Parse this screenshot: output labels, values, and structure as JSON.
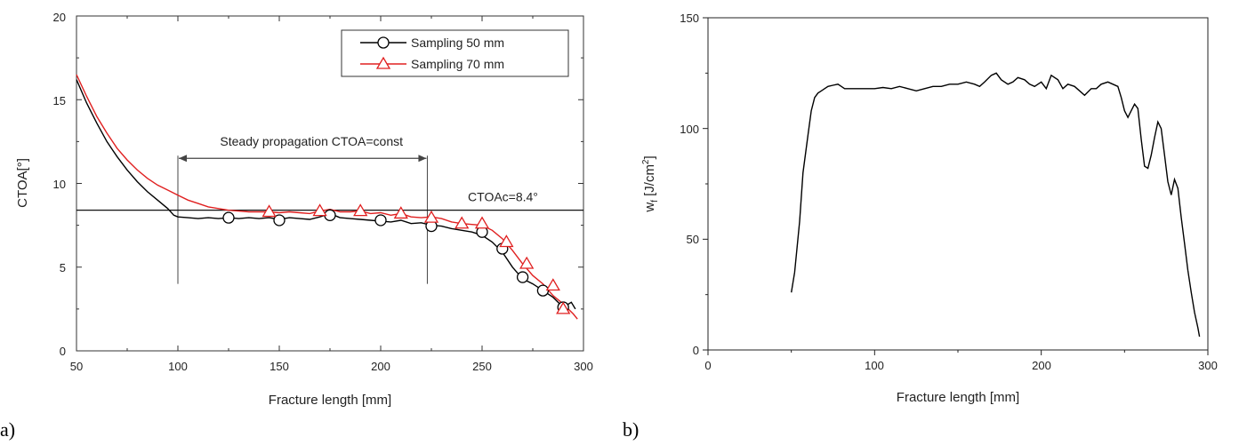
{
  "chart_data": [
    {
      "panel_label": "a)",
      "type": "line",
      "xlabel": "Fracture length [mm]",
      "ylabel": "CTOA[°]",
      "xlim": [
        50,
        300
      ],
      "ylim": [
        0,
        20
      ],
      "xticks": [
        "50",
        "100",
        "150",
        "200",
        "250",
        "300"
      ],
      "yticks": [
        "0",
        "5",
        "10",
        "15",
        "20"
      ],
      "grid": false,
      "legend_position": "top-right",
      "series": [
        {
          "name": "Sampling 50 mm",
          "color": "#000000",
          "marker": "circle",
          "x": [
            50,
            55,
            60,
            65,
            70,
            75,
            80,
            85,
            90,
            95,
            98,
            100,
            105,
            110,
            115,
            120,
            125,
            130,
            135,
            140,
            145,
            150,
            155,
            160,
            165,
            170,
            175,
            180,
            185,
            190,
            195,
            200,
            205,
            210,
            215,
            220,
            225,
            230,
            235,
            240,
            245,
            250,
            255,
            260,
            265,
            270,
            275,
            280,
            285,
            290,
            294,
            296
          ],
          "y": [
            16.2,
            14.8,
            13.6,
            12.5,
            11.6,
            10.8,
            10.1,
            9.5,
            9.0,
            8.5,
            8.1,
            8.0,
            7.95,
            7.9,
            7.95,
            7.9,
            7.95,
            7.9,
            7.95,
            7.9,
            7.95,
            7.85,
            7.95,
            7.9,
            7.85,
            8.0,
            8.2,
            7.95,
            7.9,
            7.85,
            7.8,
            7.75,
            7.7,
            7.8,
            7.6,
            7.65,
            7.5,
            7.45,
            7.3,
            7.2,
            7.1,
            6.9,
            6.5,
            5.9,
            5.0,
            4.3,
            4.0,
            3.6,
            3.2,
            2.6,
            2.9,
            2.5
          ],
          "marker_x": [
            125,
            150,
            175,
            200,
            225,
            250,
            260,
            270,
            280,
            290
          ],
          "marker_y": [
            7.95,
            7.8,
            8.1,
            7.8,
            7.45,
            7.1,
            6.1,
            4.4,
            3.6,
            2.6
          ]
        },
        {
          "name": "Sampling 70 mm",
          "color": "#e02020",
          "marker": "triangle",
          "x": [
            50,
            55,
            60,
            65,
            70,
            75,
            80,
            85,
            90,
            95,
            100,
            105,
            110,
            115,
            120,
            125,
            130,
            135,
            140,
            145,
            150,
            155,
            160,
            165,
            170,
            175,
            180,
            185,
            190,
            195,
            200,
            205,
            210,
            215,
            220,
            225,
            230,
            235,
            240,
            245,
            250,
            255,
            260,
            265,
            270,
            275,
            280,
            285,
            290,
            295,
            297
          ],
          "y": [
            16.5,
            15.2,
            14.0,
            13.0,
            12.1,
            11.4,
            10.8,
            10.3,
            9.9,
            9.6,
            9.3,
            9.0,
            8.8,
            8.6,
            8.5,
            8.4,
            8.35,
            8.3,
            8.3,
            8.3,
            8.25,
            8.3,
            8.25,
            8.2,
            8.35,
            8.45,
            8.3,
            8.3,
            8.35,
            8.2,
            8.25,
            8.1,
            8.2,
            8.0,
            7.95,
            8.0,
            7.9,
            7.7,
            7.6,
            7.55,
            7.5,
            7.2,
            6.7,
            6.0,
            5.2,
            4.5,
            4.0,
            3.3,
            2.8,
            2.2,
            1.9
          ],
          "marker_x": [
            145,
            170,
            190,
            210,
            225,
            240,
            250,
            262,
            272,
            285,
            290
          ],
          "marker_y": [
            8.3,
            8.35,
            8.35,
            8.2,
            7.95,
            7.6,
            7.6,
            6.5,
            5.2,
            3.9,
            2.5
          ]
        }
      ],
      "reference_line": {
        "y": 8.4,
        "label": "CTOAc=8.4°"
      },
      "annotation": {
        "text": "Steady propagation CTOA=const",
        "x_start": 100,
        "x_end": 223,
        "y_arrow": 11.5,
        "y_bottom": 4.0
      }
    },
    {
      "panel_label": "b)",
      "type": "line",
      "xlabel": "Fracture length [mm]",
      "ylabel_main": "w",
      "ylabel_sub": "f",
      "ylabel_unit": " [J/cm",
      "ylabel_sup": "2",
      "ylabel_close": "]",
      "xlim": [
        0,
        300
      ],
      "ylim": [
        0,
        150
      ],
      "xticks": [
        "0",
        "100",
        "200",
        "300"
      ],
      "yticks": [
        "0",
        "50",
        "100",
        "150"
      ],
      "grid": false,
      "series": [
        {
          "color": "#000000",
          "x": [
            50,
            52,
            55,
            57,
            60,
            62,
            64,
            66,
            68,
            70,
            72,
            75,
            78,
            80,
            82,
            85,
            90,
            95,
            100,
            105,
            110,
            115,
            120,
            125,
            130,
            135,
            140,
            145,
            150,
            155,
            160,
            163,
            166,
            170,
            173,
            176,
            180,
            183,
            186,
            190,
            193,
            196,
            200,
            203,
            206,
            210,
            213,
            216,
            220,
            223,
            226,
            230,
            233,
            236,
            240,
            243,
            246,
            248,
            250,
            252,
            254,
            256,
            258,
            260,
            262,
            264,
            266,
            268,
            270,
            272,
            274,
            276,
            278,
            280,
            282,
            284,
            286,
            288,
            290,
            292,
            294,
            295
          ],
          "y": [
            26,
            35,
            58,
            80,
            97,
            108,
            114,
            116,
            117,
            118,
            119,
            119.5,
            120,
            119,
            118,
            118,
            118,
            118,
            118,
            118.5,
            118,
            119,
            118,
            117,
            118,
            119,
            119,
            120,
            120,
            121,
            120,
            119,
            121,
            124,
            125,
            122,
            120,
            121,
            123,
            122,
            120,
            119,
            121,
            118,
            124,
            122,
            118,
            120,
            119,
            117,
            115,
            118,
            118,
            120,
            121,
            120,
            119,
            114,
            108,
            105,
            108,
            111,
            109,
            95,
            83,
            82,
            88,
            96,
            103,
            100,
            88,
            76,
            70,
            77,
            73,
            60,
            48,
            36,
            26,
            17,
            10,
            6
          ]
        }
      ]
    }
  ]
}
